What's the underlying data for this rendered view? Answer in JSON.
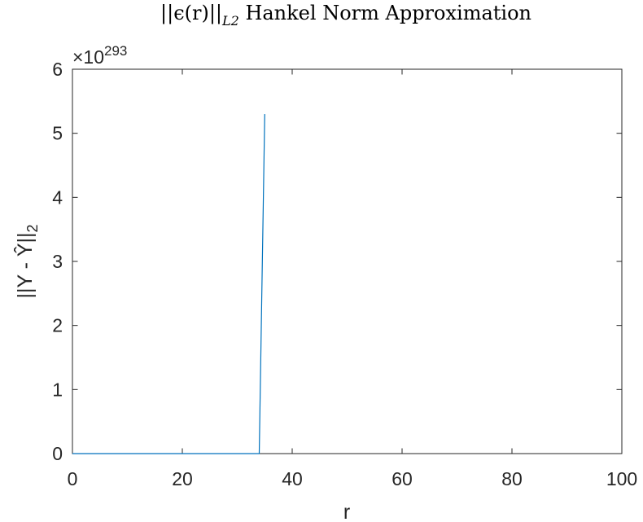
{
  "chart_data": {
    "type": "line",
    "title": "||ϵ(r)||",
    "title_subscript": "L2",
    "title_suffix": " Hankel Norm Approximation",
    "xlabel": "r",
    "ylabel": "||Y - Ŷ||",
    "ylabel_subscript": "2",
    "xlim": [
      0,
      100
    ],
    "ylim": [
      0,
      6
    ],
    "xticks": [
      0,
      20,
      40,
      60,
      80,
      100
    ],
    "yticks": [
      0,
      1,
      2,
      3,
      4,
      5,
      6
    ],
    "xtick_labels": [
      "0",
      "20",
      "40",
      "60",
      "80",
      "100"
    ],
    "ytick_labels": [
      "0",
      "1",
      "2",
      "3",
      "4",
      "5",
      "6"
    ],
    "exponent_prefix": "×10",
    "exponent_power": "293",
    "grid": false,
    "series": [
      {
        "color": "#0072BD",
        "x": [
          0,
          1,
          2,
          3,
          4,
          5,
          6,
          7,
          8,
          9,
          10,
          11,
          12,
          13,
          14,
          15,
          16,
          17,
          18,
          19,
          20,
          21,
          22,
          23,
          24,
          25,
          26,
          27,
          28,
          29,
          30,
          31,
          32,
          33,
          34,
          35
        ],
        "y": [
          0,
          0,
          0,
          0,
          0,
          0,
          0,
          0,
          0,
          0,
          0,
          0,
          0,
          0,
          0,
          0,
          0,
          0,
          0,
          0,
          0,
          0,
          0,
          0,
          0,
          0,
          0,
          0,
          0,
          0,
          0,
          0,
          0,
          0,
          0,
          5.3
        ]
      }
    ]
  }
}
